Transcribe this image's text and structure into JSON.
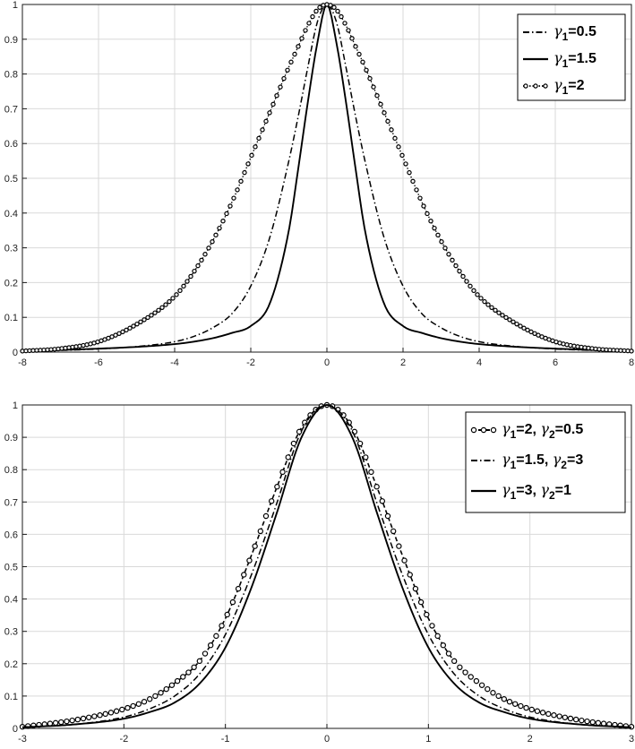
{
  "chart_data": [
    {
      "type": "line",
      "title": "",
      "xlabel": "",
      "ylabel": "",
      "xlim": [
        -8,
        8
      ],
      "ylim": [
        0,
        1
      ],
      "x_ticks": [
        -8,
        -6,
        -4,
        -2,
        0,
        2,
        4,
        6,
        8
      ],
      "y_ticks": [
        0,
        0.1,
        0.2,
        0.3,
        0.4,
        0.5,
        0.6,
        0.7,
        0.8,
        0.9,
        1
      ],
      "x_tick_labels": [
        "-8",
        "-6",
        "-4",
        "-2",
        "0",
        "2",
        "4",
        "6",
        "8"
      ],
      "y_tick_labels": [
        "0",
        "0.1",
        "0.2",
        "0.3",
        "0.4",
        "0.5",
        "0.6",
        "0.7",
        "0.8",
        "0.9",
        "1"
      ],
      "grid": true,
      "legend_position": "top-right",
      "x": [
        -8,
        -7,
        -6,
        -5,
        -4,
        -3.5,
        -3,
        -2.5,
        -2,
        -1.5,
        -1,
        -0.75,
        -0.5,
        -0.25,
        0,
        0.25,
        0.5,
        0.75,
        1,
        1.5,
        2,
        2.5,
        3,
        3.5,
        4,
        5,
        6,
        7,
        8
      ],
      "series": [
        {
          "legend_symbol": "γ",
          "legend_sub": "1",
          "legend_rest": "=0.5",
          "style": "dashdot",
          "values": [
            0.003,
            0.005,
            0.009,
            0.016,
            0.03,
            0.045,
            0.07,
            0.11,
            0.19,
            0.33,
            0.55,
            0.68,
            0.82,
            0.95,
            1.0,
            0.95,
            0.82,
            0.68,
            0.55,
            0.33,
            0.19,
            0.11,
            0.07,
            0.045,
            0.03,
            0.016,
            0.009,
            0.005,
            0.003
          ]
        },
        {
          "legend_symbol": "γ",
          "legend_sub": "1",
          "legend_rest": "=1.5",
          "style": "solid",
          "values": [
            0.003,
            0.006,
            0.01,
            0.015,
            0.023,
            0.03,
            0.04,
            0.055,
            0.075,
            0.14,
            0.35,
            0.53,
            0.72,
            0.89,
            1.0,
            0.89,
            0.72,
            0.53,
            0.35,
            0.14,
            0.075,
            0.055,
            0.04,
            0.03,
            0.023,
            0.015,
            0.01,
            0.006,
            0.003
          ]
        },
        {
          "legend_symbol": "γ",
          "legend_sub": "1",
          "legend_rest": "=2",
          "style": "dotted-markers",
          "values": [
            0.003,
            0.01,
            0.03,
            0.08,
            0.16,
            0.23,
            0.32,
            0.43,
            0.56,
            0.69,
            0.82,
            0.88,
            0.94,
            0.985,
            1.0,
            0.985,
            0.94,
            0.88,
            0.82,
            0.69,
            0.56,
            0.43,
            0.32,
            0.23,
            0.16,
            0.08,
            0.03,
            0.01,
            0.003
          ]
        }
      ]
    },
    {
      "type": "line",
      "title": "",
      "xlabel": "",
      "ylabel": "",
      "xlim": [
        -3,
        3
      ],
      "ylim": [
        0,
        1
      ],
      "x_ticks": [
        -3,
        -2,
        -1,
        0,
        1,
        2,
        3
      ],
      "y_ticks": [
        0,
        0.1,
        0.2,
        0.3,
        0.4,
        0.5,
        0.6,
        0.7,
        0.8,
        0.9,
        1
      ],
      "x_tick_labels": [
        "-3",
        "-2",
        "-1",
        "0",
        "1",
        "2",
        "3"
      ],
      "y_tick_labels": [
        "0",
        "0.1",
        "0.2",
        "0.3",
        "0.4",
        "0.5",
        "0.6",
        "0.7",
        "0.8",
        "0.9",
        "1"
      ],
      "grid": true,
      "legend_position": "top-right",
      "x": [
        -3,
        -2.5,
        -2,
        -1.75,
        -1.5,
        -1.25,
        -1,
        -0.75,
        -0.5,
        -0.25,
        0,
        0.25,
        0.5,
        0.75,
        1,
        1.25,
        1.5,
        1.75,
        2,
        2.5,
        3
      ],
      "series": [
        {
          "legend_symbol": "γ",
          "legend_sub": "1",
          "legend_rest": "=2, ",
          "legend_symbol2": "γ",
          "legend_sub2": "2",
          "legend_rest2": "=0.5",
          "style": "dashed-markers",
          "values": [
            0.005,
            0.025,
            0.06,
            0.09,
            0.14,
            0.21,
            0.34,
            0.53,
            0.74,
            0.93,
            1.0,
            0.93,
            0.74,
            0.53,
            0.34,
            0.21,
            0.14,
            0.09,
            0.06,
            0.025,
            0.005
          ]
        },
        {
          "legend_symbol": "γ",
          "legend_sub": "1",
          "legend_rest": "=1.5, ",
          "legend_symbol2": "γ",
          "legend_sub2": "2",
          "legend_rest2": "=3",
          "style": "dashdot",
          "values": [
            0.004,
            0.012,
            0.035,
            0.06,
            0.1,
            0.17,
            0.29,
            0.47,
            0.69,
            0.92,
            1.0,
            0.92,
            0.69,
            0.47,
            0.29,
            0.17,
            0.1,
            0.06,
            0.035,
            0.012,
            0.004
          ]
        },
        {
          "legend_symbol": "γ",
          "legend_sub": "1",
          "legend_rest": "=3, ",
          "legend_symbol2": "γ",
          "legend_sub2": "2",
          "legend_rest2": "=1",
          "style": "solid",
          "values": [
            0.003,
            0.012,
            0.03,
            0.05,
            0.08,
            0.14,
            0.25,
            0.43,
            0.66,
            0.9,
            1.0,
            0.9,
            0.66,
            0.43,
            0.25,
            0.14,
            0.08,
            0.05,
            0.03,
            0.012,
            0.003
          ]
        }
      ]
    }
  ]
}
